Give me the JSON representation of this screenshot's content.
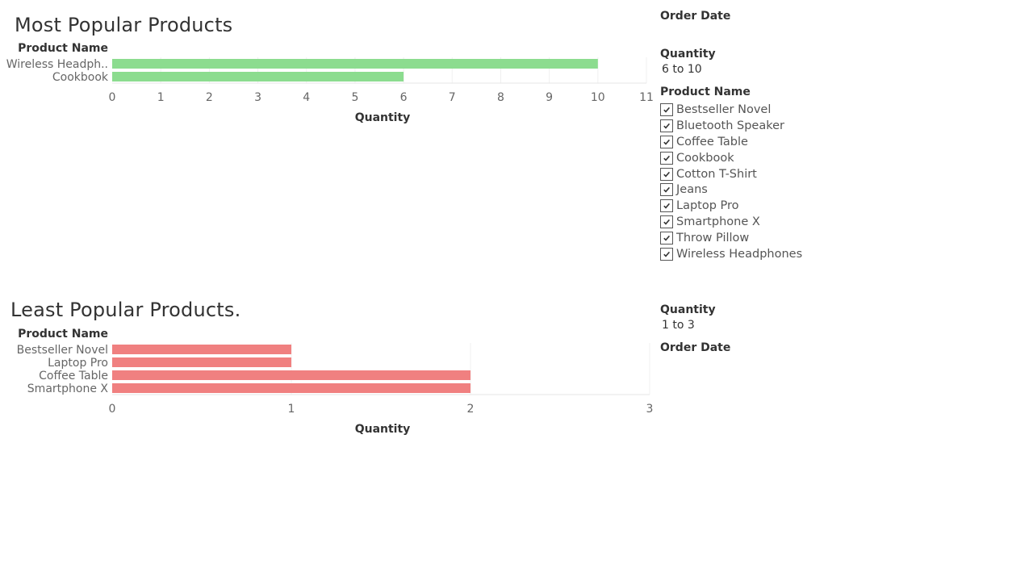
{
  "colors": {
    "popular_bar": "#8cdc8f",
    "least_bar": "#f08080",
    "text_dark": "#333333",
    "text_muted": "#666666"
  },
  "chart_data": [
    {
      "type": "bar",
      "orientation": "horizontal",
      "title": "Most Popular Products",
      "dimension_header": "Product Name",
      "categories": [
        "Wireless Headph..",
        "Cookbook"
      ],
      "values": [
        10,
        6
      ],
      "xlabel": "Quantity",
      "xlim": [
        0,
        11
      ],
      "xticks": [
        0,
        1,
        2,
        3,
        4,
        5,
        6,
        7,
        8,
        9,
        10,
        11
      ],
      "grid": true,
      "color": "#8cdc8f"
    },
    {
      "type": "bar",
      "orientation": "horizontal",
      "title": "Least Popular Products.",
      "dimension_header": "Product Name",
      "categories": [
        "Bestseller Novel",
        "Laptop Pro",
        "Coffee Table",
        "Smartphone X"
      ],
      "values": [
        1,
        1,
        2,
        2
      ],
      "xlabel": "Quantity",
      "xlim": [
        0,
        3
      ],
      "xticks": [
        0,
        1,
        2,
        3
      ],
      "grid": true,
      "color": "#f08080"
    }
  ],
  "filters": {
    "order_date_top": {
      "title": "Order Date"
    },
    "quantity_top": {
      "title": "Quantity",
      "value": "6 to 10"
    },
    "product_name": {
      "title": "Product Name",
      "items": [
        {
          "label": "Bestseller Novel",
          "checked": true
        },
        {
          "label": "Bluetooth Speaker",
          "checked": true
        },
        {
          "label": "Coffee Table",
          "checked": true
        },
        {
          "label": "Cookbook",
          "checked": true
        },
        {
          "label": "Cotton T-Shirt",
          "checked": true
        },
        {
          "label": "Jeans",
          "checked": true
        },
        {
          "label": "Laptop Pro",
          "checked": true
        },
        {
          "label": "Smartphone X",
          "checked": true
        },
        {
          "label": "Throw Pillow",
          "checked": true
        },
        {
          "label": "Wireless Headphones",
          "checked": true
        }
      ]
    },
    "quantity_bottom": {
      "title": "Quantity",
      "value": "1 to 3"
    },
    "order_date_bottom": {
      "title": "Order Date"
    }
  }
}
